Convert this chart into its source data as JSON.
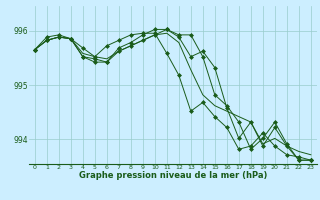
{
  "background_color": "#cceeff",
  "plot_bg_color": "#cceeff",
  "grid_color": "#99cccc",
  "line_color": "#1a5c1a",
  "marker_color": "#1a5c1a",
  "xlabel": "Graphe pression niveau de la mer (hPa)",
  "ylim": [
    993.55,
    996.45
  ],
  "xlim": [
    -0.5,
    23.5
  ],
  "yticks": [
    994,
    995,
    996
  ],
  "xticks": [
    0,
    1,
    2,
    3,
    4,
    5,
    6,
    7,
    8,
    9,
    10,
    11,
    12,
    13,
    14,
    15,
    16,
    17,
    18,
    19,
    20,
    21,
    22,
    23
  ],
  "series": [
    [
      995.65,
      995.82,
      995.88,
      995.85,
      995.58,
      995.52,
      995.48,
      995.62,
      995.72,
      995.82,
      995.92,
      995.95,
      995.78,
      995.28,
      994.82,
      994.62,
      994.52,
      994.42,
      994.32,
      993.92,
      994.02,
      993.88,
      993.78,
      993.72
    ],
    [
      995.65,
      995.82,
      995.88,
      995.85,
      995.68,
      995.52,
      995.72,
      995.82,
      995.92,
      995.95,
      995.95,
      995.58,
      995.18,
      994.52,
      994.68,
      994.42,
      994.22,
      993.82,
      993.88,
      994.12,
      993.88,
      993.72,
      993.68,
      993.62
    ],
    [
      995.65,
      995.88,
      995.92,
      995.85,
      995.52,
      995.48,
      995.42,
      995.68,
      995.78,
      995.92,
      996.02,
      996.02,
      995.88,
      995.52,
      995.62,
      995.32,
      994.58,
      994.02,
      994.32,
      993.88,
      994.22,
      993.88,
      993.62,
      993.62
    ],
    [
      995.65,
      995.82,
      995.88,
      995.85,
      995.52,
      995.42,
      995.42,
      995.62,
      995.72,
      995.82,
      995.92,
      996.02,
      995.92,
      995.92,
      995.52,
      994.82,
      994.62,
      994.32,
      993.82,
      994.02,
      994.32,
      993.92,
      993.62,
      993.62
    ]
  ],
  "has_markers": [
    false,
    true,
    true,
    true
  ],
  "marker_style": "D",
  "marker_size": 2.0,
  "linewidth": 0.7
}
